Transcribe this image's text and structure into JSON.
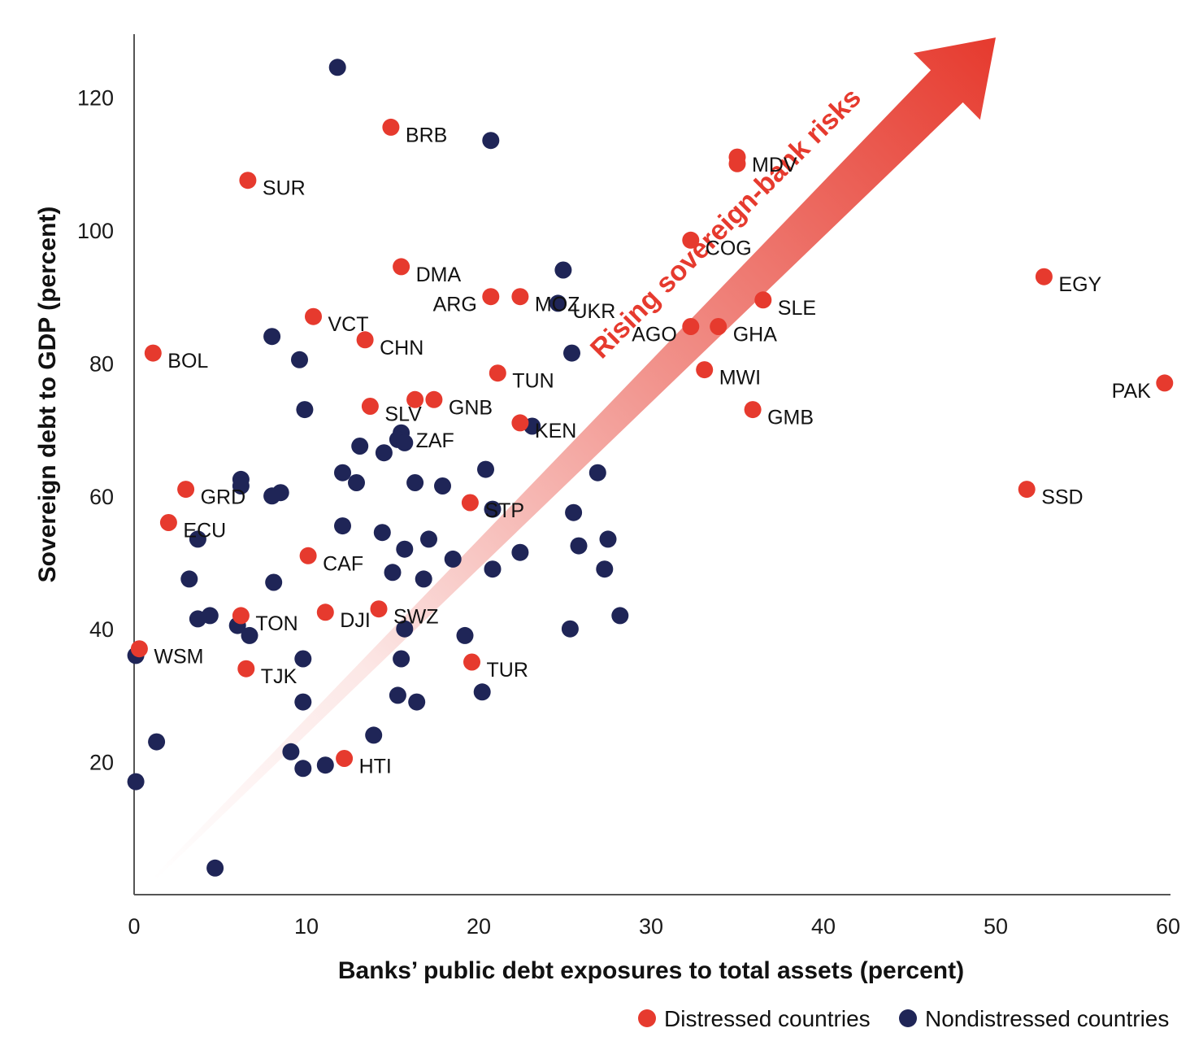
{
  "chart_data": {
    "type": "scatter",
    "xlabel": "Banks’ public debt exposures to total assets (percent)",
    "ylabel": "Sovereign debt to GDP (percent)",
    "xlim": [
      0,
      60
    ],
    "ylim": [
      0,
      130
    ],
    "xticks": [
      0,
      10,
      20,
      30,
      40,
      50,
      60
    ],
    "yticks": [
      20,
      40,
      60,
      80,
      100,
      120
    ],
    "grid": false,
    "legend_position": "bottom-right",
    "colors": {
      "distressed": "#e63a2e",
      "nondistressed": "#1f2557",
      "axis": "#555555"
    },
    "annotation": {
      "text": "Rising sovereign-bank risks",
      "from": [
        1,
        2
      ],
      "to": [
        50,
        129
      ]
    },
    "series": [
      {
        "name": "Distressed countries",
        "color": "#e63a2e",
        "points": [
          {
            "x": 14.9,
            "y": 115.5,
            "label": "BRB"
          },
          {
            "x": 6.6,
            "y": 107.5,
            "label": "SUR"
          },
          {
            "x": 35.0,
            "y": 111.0,
            "label": "MDV"
          },
          {
            "x": 35.0,
            "y": 110.0,
            "label": ""
          },
          {
            "x": 32.3,
            "y": 98.5,
            "label": "COG"
          },
          {
            "x": 15.5,
            "y": 94.5,
            "label": "DMA"
          },
          {
            "x": 20.7,
            "y": 90.0,
            "label": "ARG"
          },
          {
            "x": 22.4,
            "y": 90.0,
            "label": "MOZ"
          },
          {
            "x": 52.8,
            "y": 93.0,
            "label": "EGY"
          },
          {
            "x": 36.5,
            "y": 89.5,
            "label": "SLE"
          },
          {
            "x": 10.4,
            "y": 87.0,
            "label": "VCT"
          },
          {
            "x": 13.4,
            "y": 83.5,
            "label": "CHN"
          },
          {
            "x": 32.3,
            "y": 85.5,
            "label": "AGO"
          },
          {
            "x": 33.9,
            "y": 85.5,
            "label": "GHA"
          },
          {
            "x": 1.1,
            "y": 81.5,
            "label": "BOL"
          },
          {
            "x": 21.1,
            "y": 78.5,
            "label": "TUN"
          },
          {
            "x": 33.1,
            "y": 79.0,
            "label": "MWI"
          },
          {
            "x": 59.8,
            "y": 77.0,
            "label": "PAK"
          },
          {
            "x": 16.3,
            "y": 74.5,
            "label": ""
          },
          {
            "x": 17.4,
            "y": 74.5,
            "label": "GNB"
          },
          {
            "x": 13.7,
            "y": 73.5,
            "label": "SLV"
          },
          {
            "x": 35.9,
            "y": 73.0,
            "label": "GMB"
          },
          {
            "x": 22.4,
            "y": 71.0,
            "label": "KEN"
          },
          {
            "x": 3.0,
            "y": 61.0,
            "label": "GRD"
          },
          {
            "x": 51.8,
            "y": 61.0,
            "label": "SSD"
          },
          {
            "x": 19.5,
            "y": 59.0,
            "label": "STP"
          },
          {
            "x": 2.0,
            "y": 56.0,
            "label": "ECU"
          },
          {
            "x": 10.1,
            "y": 51.0,
            "label": "CAF"
          },
          {
            "x": 14.2,
            "y": 43.0,
            "label": "SWZ"
          },
          {
            "x": 11.1,
            "y": 42.5,
            "label": "DJI"
          },
          {
            "x": 6.2,
            "y": 42.0,
            "label": "TON"
          },
          {
            "x": 0.3,
            "y": 37.0,
            "label": "WSM"
          },
          {
            "x": 19.6,
            "y": 35.0,
            "label": "TUR"
          },
          {
            "x": 6.5,
            "y": 34.0,
            "label": "TJK"
          },
          {
            "x": 12.2,
            "y": 20.5,
            "label": "HTI"
          }
        ]
      },
      {
        "name": "Nondistressed countries",
        "color": "#1f2557",
        "points": [
          {
            "x": 11.8,
            "y": 124.5
          },
          {
            "x": 20.7,
            "y": 113.5
          },
          {
            "x": 24.9,
            "y": 94.0
          },
          {
            "x": 24.6,
            "y": 89.0,
            "label": "UKR"
          },
          {
            "x": 8.0,
            "y": 84.0
          },
          {
            "x": 25.4,
            "y": 81.5
          },
          {
            "x": 9.6,
            "y": 80.5
          },
          {
            "x": 9.9,
            "y": 73.0
          },
          {
            "x": 23.1,
            "y": 70.5
          },
          {
            "x": 15.5,
            "y": 69.5,
            "label": "ZAF"
          },
          {
            "x": 15.3,
            "y": 68.5
          },
          {
            "x": 15.7,
            "y": 68.0
          },
          {
            "x": 13.1,
            "y": 67.5
          },
          {
            "x": 14.5,
            "y": 66.5
          },
          {
            "x": 20.4,
            "y": 64.0
          },
          {
            "x": 26.9,
            "y": 63.5
          },
          {
            "x": 12.1,
            "y": 63.5
          },
          {
            "x": 6.2,
            "y": 62.5
          },
          {
            "x": 6.2,
            "y": 61.5
          },
          {
            "x": 12.9,
            "y": 62.0
          },
          {
            "x": 16.3,
            "y": 62.0
          },
          {
            "x": 17.9,
            "y": 61.5
          },
          {
            "x": 8.5,
            "y": 60.5
          },
          {
            "x": 8.0,
            "y": 60.0
          },
          {
            "x": 20.8,
            "y": 58.0
          },
          {
            "x": 25.5,
            "y": 57.5
          },
          {
            "x": 12.1,
            "y": 55.5
          },
          {
            "x": 14.4,
            "y": 54.5
          },
          {
            "x": 3.7,
            "y": 53.5
          },
          {
            "x": 17.1,
            "y": 53.5
          },
          {
            "x": 27.5,
            "y": 53.5
          },
          {
            "x": 15.7,
            "y": 52.0
          },
          {
            "x": 25.8,
            "y": 52.5
          },
          {
            "x": 22.4,
            "y": 51.5
          },
          {
            "x": 18.5,
            "y": 50.5
          },
          {
            "x": 20.8,
            "y": 49.0
          },
          {
            "x": 27.3,
            "y": 49.0
          },
          {
            "x": 15.0,
            "y": 48.5
          },
          {
            "x": 3.2,
            "y": 47.5
          },
          {
            "x": 16.8,
            "y": 47.5
          },
          {
            "x": 8.1,
            "y": 47.0
          },
          {
            "x": 4.4,
            "y": 42.0
          },
          {
            "x": 3.7,
            "y": 41.5
          },
          {
            "x": 28.2,
            "y": 42.0
          },
          {
            "x": 6.0,
            "y": 40.5
          },
          {
            "x": 25.3,
            "y": 40.0
          },
          {
            "x": 15.7,
            "y": 40.0
          },
          {
            "x": 6.7,
            "y": 39.0
          },
          {
            "x": 19.2,
            "y": 39.0
          },
          {
            "x": 0.1,
            "y": 36.0
          },
          {
            "x": 9.8,
            "y": 35.5
          },
          {
            "x": 15.5,
            "y": 35.5
          },
          {
            "x": 20.2,
            "y": 30.5
          },
          {
            "x": 15.3,
            "y": 30.0
          },
          {
            "x": 16.4,
            "y": 29.0
          },
          {
            "x": 9.8,
            "y": 29.0
          },
          {
            "x": 13.9,
            "y": 24.0
          },
          {
            "x": 1.3,
            "y": 23.0
          },
          {
            "x": 9.1,
            "y": 21.5
          },
          {
            "x": 11.1,
            "y": 19.5
          },
          {
            "x": 9.8,
            "y": 19.0
          },
          {
            "x": 0.1,
            "y": 17.0
          },
          {
            "x": 4.7,
            "y": 4.0
          }
        ]
      }
    ]
  }
}
